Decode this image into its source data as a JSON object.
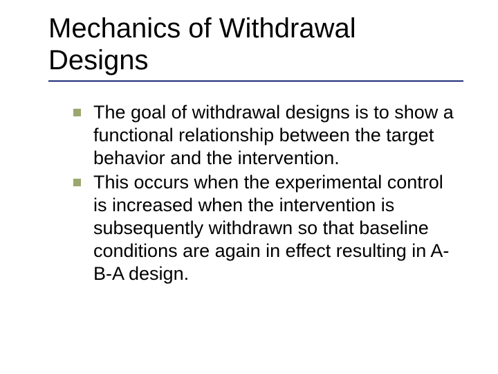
{
  "slide": {
    "title": "Mechanics of Withdrawal Designs",
    "title_color": "#000000",
    "title_fontsize": 40,
    "underline_color": "#1f2e79",
    "underline_width": 600,
    "bullet_marker_color": "#9aa86f",
    "bullet_marker_size": 11,
    "body_fontsize": 27,
    "body_color": "#000000",
    "background_color": "#ffffff",
    "bullets": [
      {
        "text": "The goal of withdrawal designs is to show a functional relationship between the target behavior and the intervention."
      },
      {
        "text": "This occurs when the experimental control is increased when the intervention is subsequently withdrawn so that baseline conditions are again in effect resulting in A-B-A design."
      }
    ]
  }
}
